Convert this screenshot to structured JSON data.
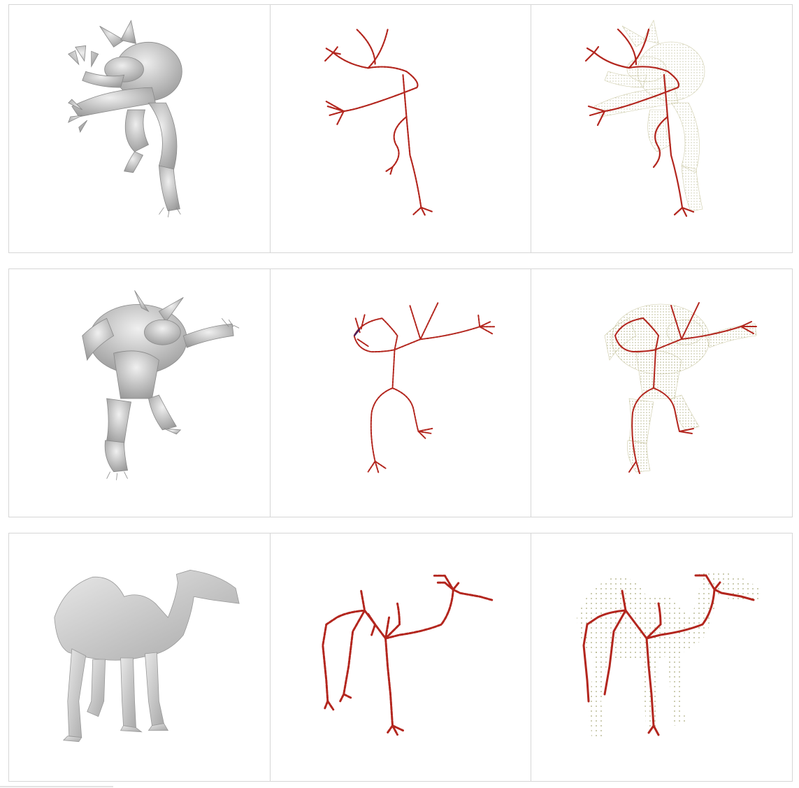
{
  "figure": {
    "rows": [
      {
        "subject": "armadillo",
        "view": "side"
      },
      {
        "subject": "armadillo",
        "view": "front"
      },
      {
        "subject": "camel",
        "view": "side"
      }
    ],
    "columns": [
      "mesh",
      "skeleton",
      "skeleton-overlay-on-point-cloud"
    ],
    "colors": {
      "mesh_fill": "#cfcfcf",
      "mesh_shade": "#9a9a9a",
      "skeleton_red": "#b3261e",
      "skeleton_dark": "#5a1a3a",
      "point_cloud": "#8a8a4a",
      "panel_border": "#d6d6d6"
    }
  }
}
